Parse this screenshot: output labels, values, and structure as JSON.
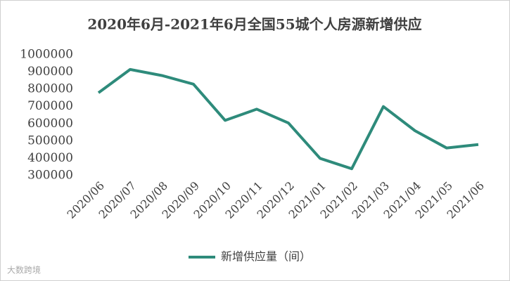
{
  "chart_data": {
    "type": "line",
    "title": "2020年6月-2021年6月全国55城个人房源新增供应",
    "categories": [
      "2020/06",
      "2020/07",
      "2020/08",
      "2020/09",
      "2020/10",
      "2020/11",
      "2020/12",
      "2021/01",
      "2021/02",
      "2021/03",
      "2021/04",
      "2021/05",
      "2021/06"
    ],
    "series": [
      {
        "name": "新增供应量（间）",
        "color": "#2e8b7b",
        "values": [
          780000,
          915000,
          880000,
          830000,
          620000,
          685000,
          605000,
          400000,
          340000,
          700000,
          560000,
          460000,
          480000
        ]
      }
    ],
    "ylim": [
      300000,
      1000000
    ],
    "yticks": [
      300000,
      400000,
      500000,
      600000,
      700000,
      800000,
      900000,
      1000000
    ],
    "grid": false,
    "legend": "bottom",
    "watermark": "大数跨境"
  }
}
